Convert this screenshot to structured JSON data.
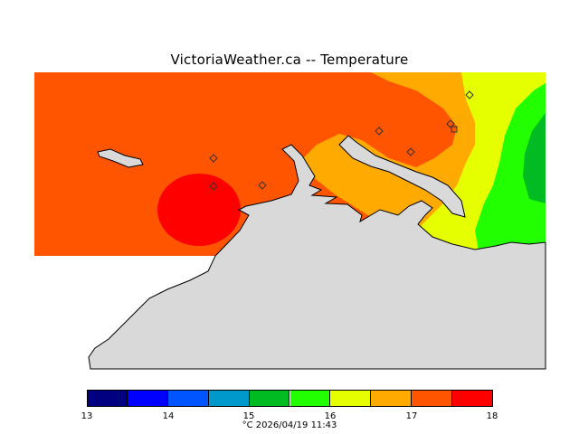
{
  "map": {
    "title": "VictoriaWeather.ca  --  Temperature",
    "colors": {
      "land": "#d9d9d9",
      "c17_5": "#ff5500",
      "c18": "#ff0000",
      "c16_5": "#ffaa00",
      "c16": "#e5ff00",
      "c15_5": "#22ff00",
      "c15": "#00bb22"
    }
  },
  "legend": {
    "bins": [
      {
        "color": "#000080"
      },
      {
        "color": "#0000ff"
      },
      {
        "color": "#0055ff"
      },
      {
        "color": "#0099cc"
      },
      {
        "color": "#00bb22"
      },
      {
        "color": "#22ff00"
      },
      {
        "color": "#e5ff00"
      },
      {
        "color": "#ffaa00"
      },
      {
        "color": "#ff5500"
      },
      {
        "color": "#ff0000"
      }
    ],
    "tick_labels": [
      "13",
      "14",
      "15",
      "16",
      "17",
      "18"
    ],
    "footer": "°C  2026/04/19 11:43"
  }
}
